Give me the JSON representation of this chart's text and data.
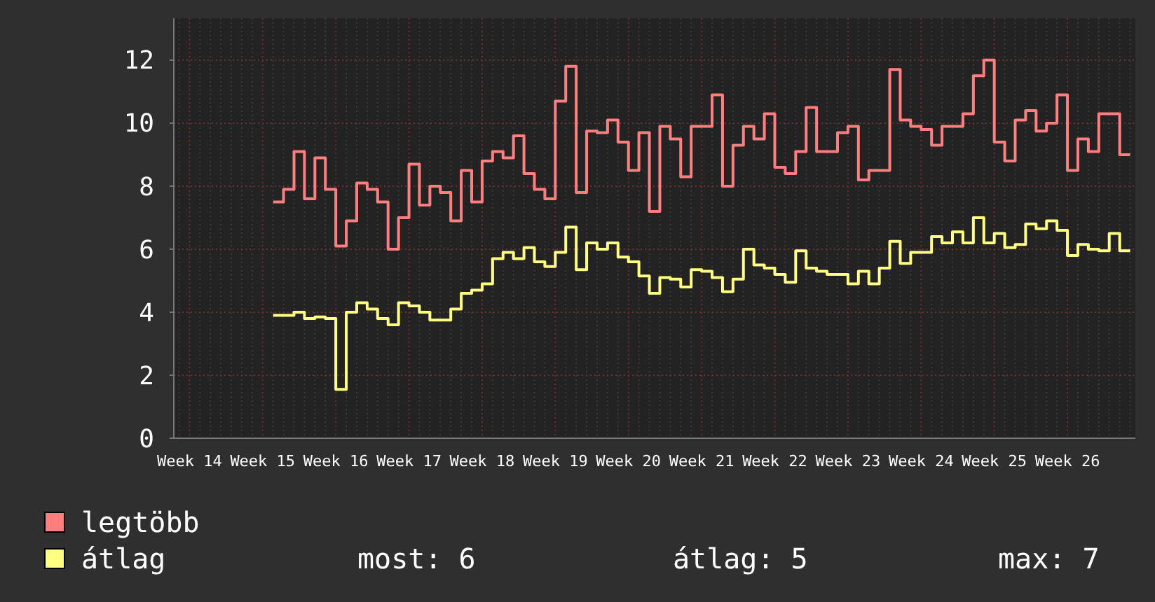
{
  "chart_data": {
    "type": "step",
    "legend": "bottom left",
    "grid": true,
    "line_style": "solid",
    "marker": "none",
    "categories": [
      null,
      "Week 14",
      null,
      null,
      null,
      null,
      null,
      null,
      "Week 15",
      null,
      null,
      null,
      null,
      null,
      null,
      "Week 16",
      null,
      null,
      null,
      null,
      null,
      null,
      "Week 17",
      null,
      null,
      null,
      null,
      null,
      null,
      "Week 18",
      null,
      null,
      null,
      null,
      null,
      null,
      "Week 19",
      null,
      null,
      null,
      null,
      null,
      null,
      "Week 20",
      null,
      null,
      null,
      null,
      null,
      null,
      "Week 21",
      null,
      null,
      null,
      null,
      null,
      null,
      "Week 22",
      null,
      null,
      null,
      null,
      null,
      null,
      "Week 23",
      null,
      null,
      null,
      null,
      null,
      null,
      "Week 24",
      null,
      null,
      null,
      null,
      null,
      null,
      "Week 25",
      null,
      null,
      null,
      null,
      null,
      null,
      "Week 26",
      null,
      null,
      null,
      null,
      null,
      null
    ],
    "ylim": [
      0,
      13.33
    ],
    "yticks": [
      0,
      2,
      4,
      6,
      8,
      10,
      12
    ],
    "series": [
      {
        "name": "legtöbb",
        "color": "#ff7f7f",
        "values": [
          null,
          null,
          null,
          null,
          null,
          null,
          null,
          null,
          null,
          7.5,
          7.9,
          9.1,
          7.6,
          8.9,
          7.9,
          6.1,
          6.9,
          8.1,
          7.9,
          7.5,
          6.0,
          7.0,
          8.7,
          7.4,
          8.0,
          7.8,
          6.9,
          8.5,
          7.5,
          8.8,
          9.1,
          8.9,
          9.6,
          8.4,
          7.9,
          7.6,
          10.7,
          11.8,
          7.8,
          9.75,
          9.7,
          10.1,
          9.4,
          8.5,
          9.7,
          7.2,
          9.9,
          9.5,
          8.3,
          9.9,
          9.9,
          10.9,
          8.0,
          9.3,
          9.9,
          9.5,
          10.3,
          8.6,
          8.4,
          9.1,
          10.5,
          9.1,
          9.1,
          9.7,
          9.9,
          8.2,
          8.5,
          8.5,
          11.7,
          10.1,
          9.9,
          9.8,
          9.3,
          9.9,
          9.9,
          10.3,
          11.5,
          12.0,
          9.4,
          8.8,
          10.1,
          10.4,
          9.75,
          10.0,
          10.9,
          8.5,
          9.5,
          9.1,
          10.3,
          10.3,
          9.0,
          9.0
        ]
      },
      {
        "name": "átlag",
        "color": "#ffff80",
        "values": [
          null,
          null,
          null,
          null,
          null,
          null,
          null,
          null,
          null,
          3.9,
          3.9,
          4.0,
          3.8,
          3.85,
          3.8,
          1.55,
          4.0,
          4.3,
          4.1,
          3.8,
          3.6,
          4.3,
          4.2,
          4.0,
          3.75,
          3.75,
          4.1,
          4.6,
          4.7,
          4.9,
          5.7,
          5.9,
          5.7,
          6.05,
          5.6,
          5.45,
          5.9,
          6.7,
          5.35,
          6.2,
          6.0,
          6.2,
          5.75,
          5.6,
          5.15,
          4.6,
          5.1,
          5.05,
          4.8,
          5.35,
          5.3,
          5.1,
          4.65,
          5.05,
          6.0,
          5.5,
          5.4,
          5.2,
          4.95,
          5.95,
          5.4,
          5.3,
          5.2,
          5.2,
          4.9,
          5.3,
          4.9,
          5.4,
          6.25,
          5.55,
          5.9,
          5.9,
          6.4,
          6.2,
          6.55,
          6.2,
          7.0,
          6.2,
          6.5,
          6.05,
          6.15,
          6.8,
          6.65,
          6.9,
          6.6,
          5.8,
          6.15,
          6.0,
          5.95,
          6.5,
          5.95,
          5.95
        ]
      }
    ],
    "annotations": [
      "most: 6",
      "átlag: 5",
      "max: 7"
    ]
  }
}
